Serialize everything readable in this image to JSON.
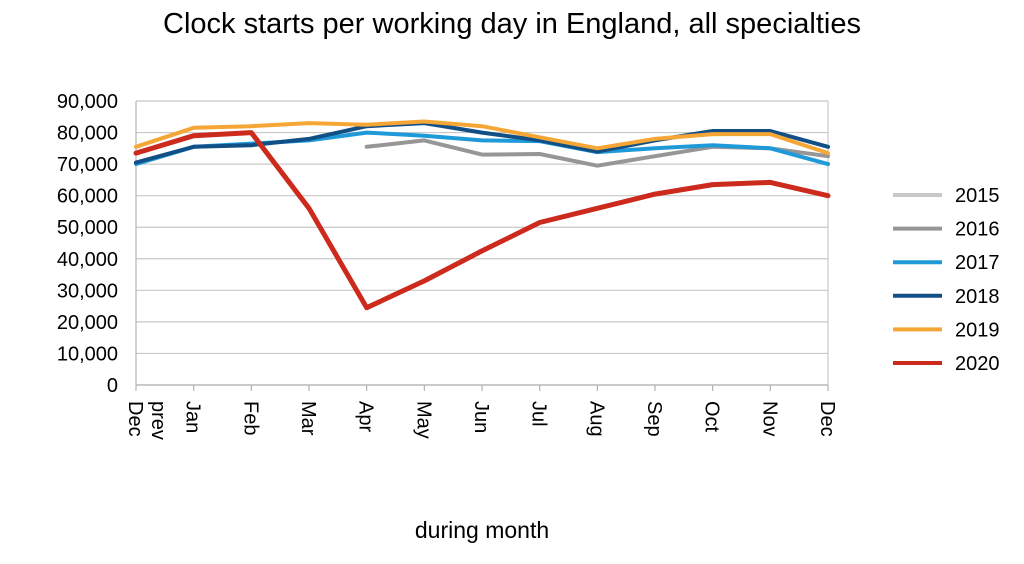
{
  "chart_data": {
    "type": "line",
    "title": "Clock starts per working day in England, all specialties",
    "xlabel": "during month",
    "ylabel": "",
    "categories": [
      "Dec prev",
      "Jan",
      "Feb",
      "Mar",
      "Apr",
      "May",
      "Jun",
      "Jul",
      "Aug",
      "Sep",
      "Oct",
      "Nov",
      "Dec"
    ],
    "ylim": [
      0,
      90000
    ],
    "yticks": [
      "0",
      "10,000",
      "20,000",
      "30,000",
      "40,000",
      "50,000",
      "60,000",
      "70,000",
      "80,000",
      "90,000"
    ],
    "grid": true,
    "legend": "right",
    "series": [
      {
        "name": "2015",
        "color": "#c8c8c8",
        "values": [
          null,
          null,
          null,
          null,
          null,
          null,
          null,
          null,
          null,
          null,
          null,
          null,
          null
        ]
      },
      {
        "name": "2016",
        "color": "#969696",
        "values": [
          null,
          null,
          null,
          null,
          75500,
          77500,
          73000,
          73200,
          69500,
          72500,
          75500,
          75000,
          72500
        ]
      },
      {
        "name": "2017",
        "color": "#1f9ad8",
        "values": [
          70000,
          75500,
          76500,
          77500,
          80000,
          79000,
          77500,
          77300,
          73800,
          75000,
          76000,
          75000,
          70000
        ]
      },
      {
        "name": "2018",
        "color": "#114f86",
        "values": [
          70500,
          75500,
          76000,
          78000,
          82000,
          83000,
          80000,
          77500,
          74000,
          77500,
          80500,
          80500,
          75500
        ]
      },
      {
        "name": "2019",
        "color": "#f6a635",
        "values": [
          75500,
          81500,
          82000,
          83000,
          82500,
          83500,
          82000,
          78500,
          75000,
          78000,
          79500,
          79500,
          73500
        ]
      },
      {
        "name": "2020",
        "color": "#cc2a1c",
        "values": [
          73500,
          79000,
          80000,
          56000,
          24500,
          33000,
          42500,
          51500,
          56000,
          60500,
          63500,
          64200,
          60000
        ]
      }
    ]
  }
}
